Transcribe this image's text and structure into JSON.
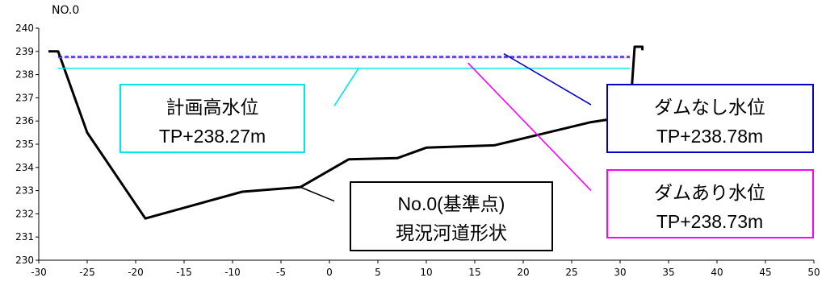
{
  "chart_data": {
    "type": "line",
    "title": "NO.0",
    "xlim": [
      -30,
      50
    ],
    "ylim": [
      230,
      240
    ],
    "x_ticks": [
      -30,
      -25,
      -20,
      -15,
      -10,
      -5,
      0,
      5,
      10,
      15,
      20,
      25,
      30,
      35,
      40,
      45,
      50
    ],
    "y_ticks": [
      230,
      231,
      232,
      233,
      234,
      235,
      236,
      237,
      238,
      239,
      240
    ],
    "grid": false,
    "series": [
      {
        "key": "riverbed",
        "color": "#000000",
        "x": [
          -29,
          -28,
          -25,
          -19,
          -9,
          -3,
          2,
          7,
          10,
          17,
          20,
          27,
          31,
          31.5,
          32.3,
          32.3
        ],
        "y": [
          239.0,
          239.0,
          235.5,
          231.8,
          232.95,
          233.15,
          234.35,
          234.4,
          234.85,
          234.95,
          235.25,
          235.95,
          236.2,
          239.2,
          239.2,
          239.05
        ]
      },
      {
        "key": "planned_high_water",
        "color": "#00e5e5",
        "style": "solid",
        "x": [
          -28,
          31
        ],
        "y": [
          238.27,
          238.27
        ]
      },
      {
        "key": "no_dam_water",
        "color": "#0000cc",
        "style": "dashed",
        "x": [
          -28,
          31
        ],
        "y": [
          238.78,
          238.78
        ]
      },
      {
        "key": "with_dam_water",
        "color": "#ff00ff",
        "style": "dashed",
        "x": [
          -28,
          31
        ],
        "y": [
          238.73,
          238.73
        ]
      }
    ],
    "annotations": [
      {
        "key": "planned",
        "lines": [
          "計画高水位",
          "TP+238.27m"
        ],
        "border": "#00e5e5",
        "leader": [
          [
            3,
            238.27
          ],
          [
            0.5,
            236.65
          ]
        ]
      },
      {
        "key": "no_dam",
        "lines": [
          "ダムなし水位",
          "TP+238.78m"
        ],
        "border": "#0000cc",
        "leader": [
          [
            18,
            238.9
          ],
          [
            27,
            236.7
          ]
        ]
      },
      {
        "key": "with_dam",
        "lines": [
          "ダムあり水位",
          "TP+238.73m"
        ],
        "border": "#ff00ff",
        "leader": [
          [
            14.3,
            238.5
          ],
          [
            27,
            233.0
          ]
        ]
      },
      {
        "key": "riverbed",
        "lines": [
          "No.0(基準点)",
          "現況河道形状"
        ],
        "border": "#000000",
        "leader": [
          [
            -3,
            233.15
          ],
          [
            0.5,
            232.55
          ]
        ]
      }
    ]
  }
}
